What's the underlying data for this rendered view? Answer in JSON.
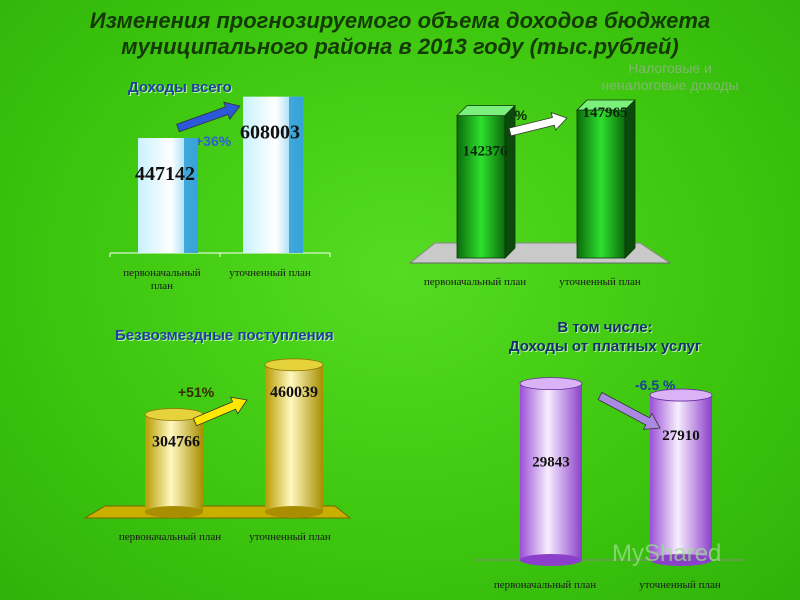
{
  "title_line1": "Изменения прогнозируемого объема доходов  бюджета",
  "title_line2": "муниципального района в 2013 году (тыс.рублей)",
  "watermark": "MyShared",
  "chart_data": [
    {
      "type": "bar",
      "title": "Доходы всего",
      "categories": [
        "первоначальный план",
        "уточненный план"
      ],
      "values": [
        447142,
        608003
      ],
      "change_label": "+36%",
      "colors": [
        "#b6ecff",
        "#2e9dd6"
      ]
    },
    {
      "type": "bar",
      "title": "Налоговые и неналоговые доходы",
      "title_lines": [
        "Налоговые и",
        "неналоговые доходы"
      ],
      "categories": [
        "первоначальный план",
        "уточненный план"
      ],
      "values": [
        142376,
        147965
      ],
      "change_label": "+3,9%",
      "colors": [
        "#1ed21e",
        "#0e5f0e"
      ]
    },
    {
      "type": "bar",
      "title": "Безвозмездные поступления",
      "categories": [
        "первоначальный план",
        "уточненный план"
      ],
      "values": [
        304766,
        460039
      ],
      "change_label": "+51%",
      "colors": [
        "#fff7b0",
        "#c9b400"
      ]
    },
    {
      "type": "bar",
      "title_lines": [
        "В том числе:",
        "Доходы от платных услуг"
      ],
      "categories": [
        "первоначальный план",
        "уточненный план"
      ],
      "values": [
        29843,
        27910
      ],
      "change_label": "-6.5 %",
      "colors": [
        "#efd9ff",
        "#9b4fd6"
      ]
    }
  ]
}
